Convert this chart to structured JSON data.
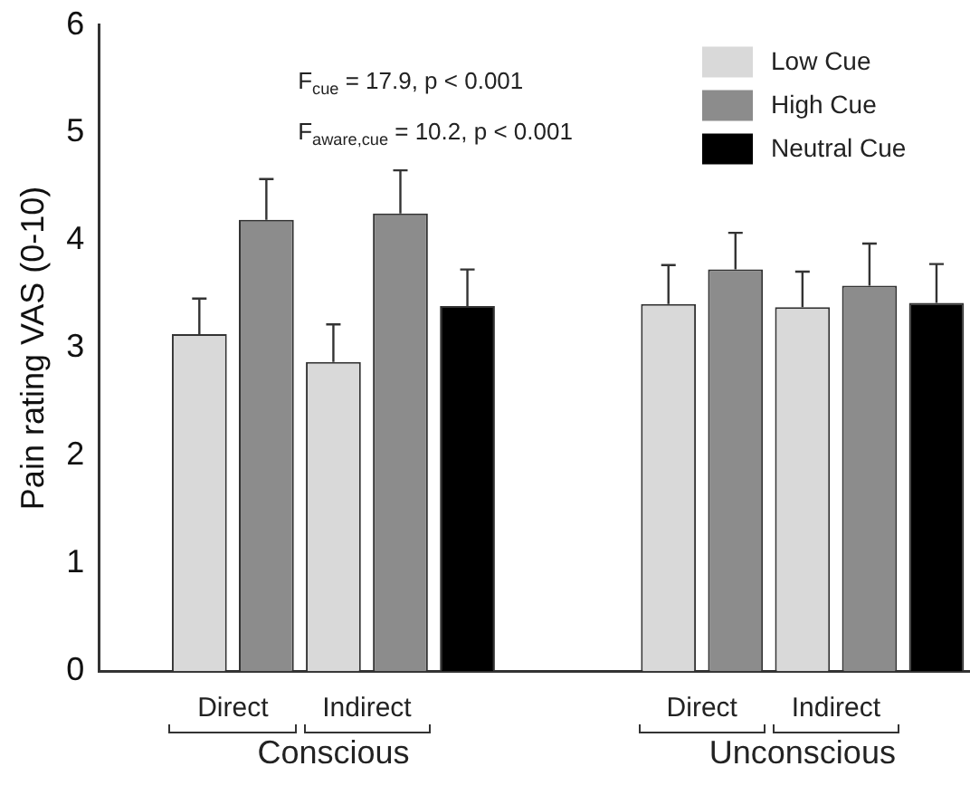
{
  "chart_data": {
    "type": "bar",
    "ylabel": "Pain rating VAS (0-10)",
    "categories": [
      null,
      null,
      null,
      null,
      null,
      null,
      null,
      null,
      null,
      null,
      null,
      null,
      null
    ],
    "series": [
      {
        "name": "Low Cue",
        "color": "#d9d9d9",
        "values": [
          null,
          3.13,
          null,
          2.87,
          null,
          null,
          null,
          null,
          3.41,
          null,
          3.38,
          null,
          null
        ],
        "errors": [
          null,
          [
            3.13,
            3.46
          ],
          null,
          [
            2.87,
            3.22
          ],
          null,
          null,
          null,
          null,
          [
            3.41,
            3.77
          ],
          null,
          [
            3.38,
            3.71
          ],
          null,
          null
        ]
      },
      {
        "name": "High Cue",
        "color": "#8c8c8c",
        "values": [
          null,
          null,
          4.19,
          null,
          4.25,
          null,
          null,
          null,
          null,
          3.73,
          null,
          3.58,
          null
        ],
        "errors": [
          null,
          null,
          [
            4.19,
            4.57
          ],
          null,
          [
            4.25,
            4.65
          ],
          null,
          null,
          null,
          null,
          [
            3.73,
            4.07
          ],
          null,
          [
            3.58,
            3.97
          ],
          null
        ]
      },
      {
        "name": "Neutral Cue",
        "color": "#000000",
        "values": [
          null,
          null,
          null,
          null,
          null,
          3.39,
          null,
          null,
          null,
          null,
          null,
          null,
          3.42
        ],
        "errors": [
          null,
          null,
          null,
          null,
          null,
          [
            3.39,
            3.73
          ],
          null,
          null,
          null,
          null,
          null,
          null,
          [
            3.42,
            3.78
          ]
        ]
      }
    ],
    "ylim": [
      0,
      6
    ],
    "yticks": [
      0,
      1,
      2,
      3,
      4,
      5,
      6
    ],
    "grid": false,
    "legend": "top right",
    "annotations": [
      "F$_{cue}$ = 17.9, p < 0.001",
      "F$_{aware,cue}$ = 10.2, p < 0.001",
      "Direct",
      "Indirect",
      "Direct",
      "Indirect",
      "Conscious",
      "Unconscious"
    ]
  }
}
